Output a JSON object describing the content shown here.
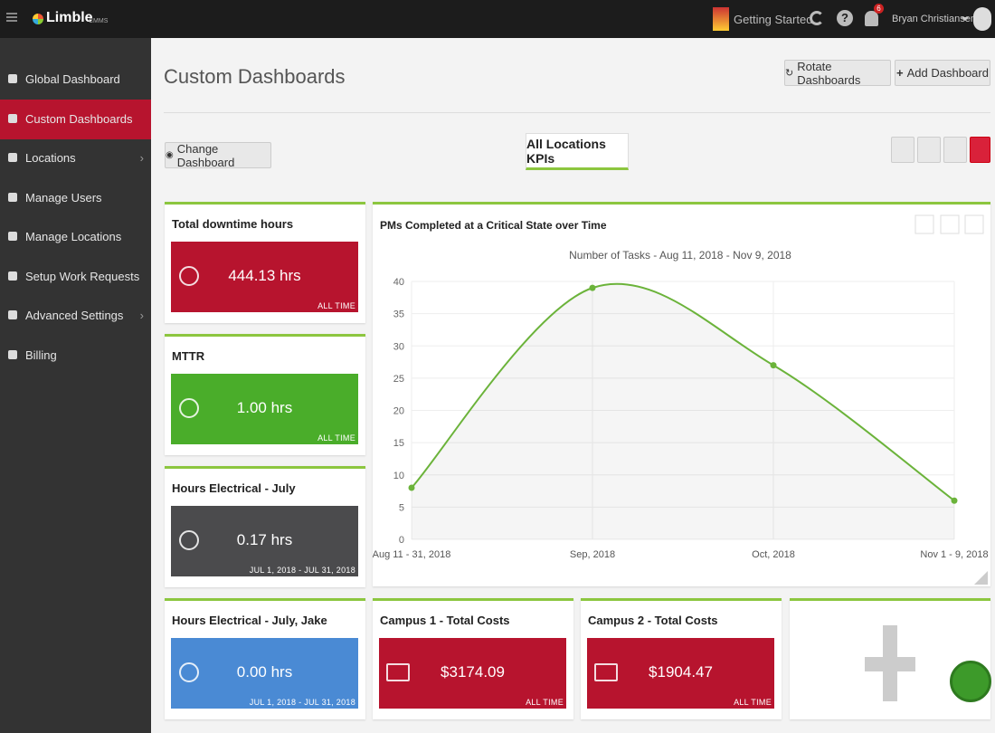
{
  "header": {
    "logo": "Limble",
    "logo_suffix": "CMMS",
    "getting_started": "Getting Started",
    "notification_count": "6",
    "user": "Bryan Christiansen"
  },
  "sidebar": {
    "items": [
      {
        "label": "Global Dashboard"
      },
      {
        "label": "Custom Dashboards",
        "active": true
      },
      {
        "label": "Locations",
        "submenu": true
      },
      {
        "label": "Manage Users"
      },
      {
        "label": "Manage Locations"
      },
      {
        "label": "Setup Work Requests"
      },
      {
        "label": "Advanced Settings",
        "submenu": true
      },
      {
        "label": "Billing"
      }
    ]
  },
  "page": {
    "title": "Custom Dashboards",
    "rotate_button": "Rotate Dashboards",
    "add_button": "Add Dashboard",
    "change_button": "Change Dashboard",
    "dashboard_tab": "All Locations KPIs"
  },
  "cards": [
    {
      "title": "Total downtime hours",
      "value": "444.13 hrs",
      "period": "ALL TIME",
      "color": "#b7142e",
      "icon": "clock"
    },
    {
      "title": "MTTR",
      "value": "1.00 hrs",
      "period": "ALL TIME",
      "color": "#4aad2a",
      "icon": "clock"
    },
    {
      "title": "Hours Electrical - July",
      "value": "0.17 hrs",
      "period": "JUL 1, 2018 - JUL 31, 2018",
      "color": "#4b4b4d",
      "icon": "clock"
    },
    {
      "title": "Hours Electrical - July, Jake",
      "value": "0.00 hrs",
      "period": "JUL 1, 2018 - JUL 31, 2018",
      "color": "#4a8ad4",
      "icon": "clock"
    },
    {
      "title": "Campus 1 - Total Costs",
      "value": "$3174.09",
      "period": "ALL TIME",
      "color": "#b7142e",
      "icon": "money"
    },
    {
      "title": "Campus 2 - Total Costs",
      "value": "$1904.47",
      "period": "ALL TIME",
      "color": "#b7142e",
      "icon": "money"
    }
  ],
  "chart_data": {
    "type": "line",
    "title": "PMs Completed at a Critical State over Time",
    "subtitle": "Number of Tasks - Aug 11, 2018 - Nov 9, 2018",
    "categories": [
      "Aug 11 - 31, 2018",
      "Sep, 2018",
      "Oct, 2018",
      "Nov 1 - 9, 2018"
    ],
    "values": [
      8,
      39,
      27,
      6
    ],
    "color": "#6bb33a",
    "smooth": true,
    "grid": true,
    "ylim": [
      0,
      40
    ],
    "yticks": [
      0,
      5,
      10,
      15,
      20,
      25,
      30,
      35,
      40
    ]
  }
}
